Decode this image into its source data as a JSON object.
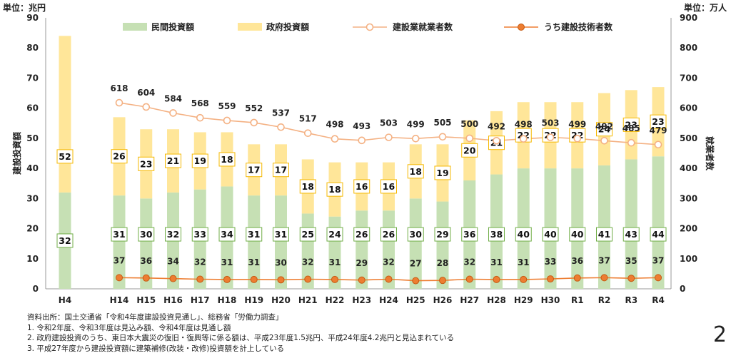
{
  "units": {
    "left": "単位：兆円",
    "right": "単位：万人"
  },
  "page_number": "2",
  "notes": [
    "資料出所：国土交通省「令和4年度建設投資見通し」、総務省「労働力調査」",
    "1. 令和2年度、令和3年度は見込み額、令和4年度は見通し額",
    "2. 政府建設投資のうち、東日本大震災の復旧・復興等に係る額は、平成23年度1.5兆円、平成24年度4.2兆円と見込まれている",
    "3. 平成27年度から建設投資額に建築補修(改装・改修)投資額を計上している"
  ],
  "chart_data": {
    "type": "bar",
    "categories": [
      "H4",
      "H14",
      "H15",
      "H16",
      "H17",
      "H18",
      "H19",
      "H20",
      "H21",
      "H22",
      "H23",
      "H24",
      "H25",
      "H26",
      "H27",
      "H28",
      "H29",
      "H30",
      "R1",
      "R2",
      "R3",
      "R4"
    ],
    "ylabel": "建設投資額",
    "y2label": "就業者数",
    "ylim": [
      0,
      90
    ],
    "y2lim": [
      0,
      900
    ],
    "yticks": [
      0,
      10,
      20,
      30,
      40,
      50,
      60,
      70,
      80,
      90
    ],
    "y2ticks": [
      0,
      100,
      200,
      300,
      400,
      500,
      600,
      700,
      800,
      900
    ],
    "legend_position": "top",
    "colors": {
      "private": "#c6e0b4",
      "government": "#ffe699",
      "workers": "#f4b183",
      "engineers": "#ed7d31",
      "box_private": "#70ad47",
      "box_government": "#f5b800"
    },
    "series": [
      {
        "name": "民間投資額",
        "kind": "bar-stack",
        "values": [
          32,
          31,
          30,
          32,
          33,
          34,
          31,
          31,
          25,
          24,
          26,
          26,
          30,
          29,
          36,
          38,
          40,
          40,
          40,
          41,
          43,
          44
        ]
      },
      {
        "name": "政府投資額",
        "kind": "bar-stack",
        "values": [
          52,
          26,
          23,
          21,
          19,
          18,
          17,
          17,
          18,
          18,
          16,
          16,
          18,
          19,
          20,
          21,
          22,
          22,
          22,
          24,
          23,
          23
        ]
      },
      {
        "name": "建設業就業者数",
        "kind": "line-right",
        "values": [
          null,
          618,
          604,
          584,
          568,
          559,
          552,
          537,
          517,
          498,
          493,
          503,
          499,
          505,
          500,
          492,
          498,
          503,
          499,
          492,
          485,
          479
        ]
      },
      {
        "name": "うち建設技術者数",
        "kind": "line-right",
        "values": [
          null,
          37,
          36,
          34,
          32,
          31,
          31,
          30,
          32,
          31,
          29,
          32,
          27,
          28,
          32,
          31,
          31,
          33,
          36,
          37,
          35,
          37
        ]
      }
    ]
  }
}
